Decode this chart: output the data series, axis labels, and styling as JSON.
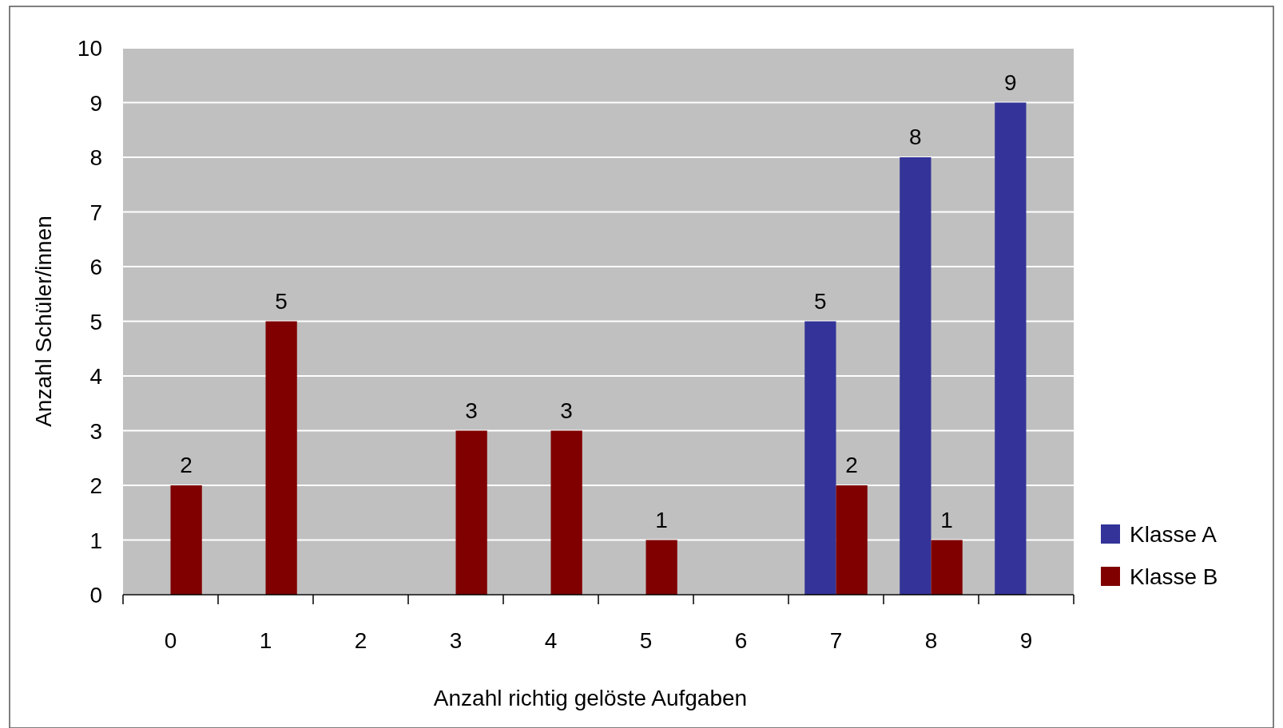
{
  "chart_data": {
    "type": "bar",
    "xlabel": "Anzahl richtig gelöste Aufgaben",
    "ylabel": "Anzahl Schüler/innen",
    "categories": [
      "0",
      "1",
      "2",
      "3",
      "4",
      "5",
      "6",
      "7",
      "8",
      "9"
    ],
    "series": [
      {
        "name": "Klasse A",
        "color": "#333399",
        "values": [
          null,
          null,
          null,
          null,
          null,
          null,
          null,
          5,
          8,
          9
        ]
      },
      {
        "name": "Klasse B",
        "color": "#800000",
        "values": [
          2,
          5,
          null,
          3,
          3,
          1,
          null,
          2,
          1,
          null
        ]
      }
    ],
    "ylim": [
      0,
      10
    ],
    "yticks": [
      0,
      1,
      2,
      3,
      4,
      5,
      6,
      7,
      8,
      9,
      10
    ],
    "grid": "y",
    "legend": "right",
    "data_labels": true
  }
}
